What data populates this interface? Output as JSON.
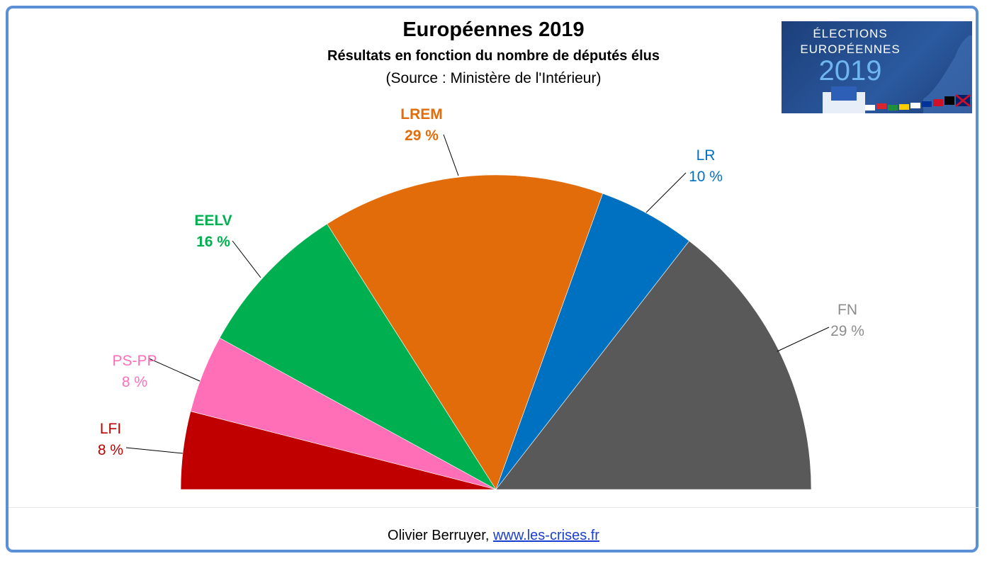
{
  "chart_data": {
    "type": "pie",
    "variant": "semicircle",
    "title": "Européennes  2019",
    "subtitle": "Résultats en fonction du nombre de députés élus",
    "source": "(Source : Ministère de l'Intérieur)",
    "slices": [
      {
        "label": "LFI",
        "value": 8,
        "value_label": "8 %",
        "color": "#c00000"
      },
      {
        "label": "PS-PP",
        "value": 8,
        "value_label": "8 %",
        "color": "#ff6fb8"
      },
      {
        "label": "EELV",
        "value": 16,
        "value_label": "16 %",
        "color": "#00b050"
      },
      {
        "label": "LREM",
        "value": 29,
        "value_label": "29 %",
        "color": "#e36c0a"
      },
      {
        "label": "LR",
        "value": 10,
        "value_label": "10 %",
        "color": "#0070c0"
      },
      {
        "label": "FN",
        "value": 29,
        "value_label": "29 %",
        "color": "#595959"
      }
    ],
    "label_colors": {
      "LFI": "#c00000",
      "PS-PP": "#ff6fb8",
      "EELV": "#00b050",
      "LREM": "#e36c0a",
      "LR": "#0070c0",
      "FN": "#8c8c8c"
    }
  },
  "logo": {
    "line1": "ÉLECTIONS",
    "line2": "EUROPÉENNES",
    "year": "2019"
  },
  "footer": {
    "author": "Olivier Berruyer, ",
    "link": "www.les-crises.fr"
  }
}
